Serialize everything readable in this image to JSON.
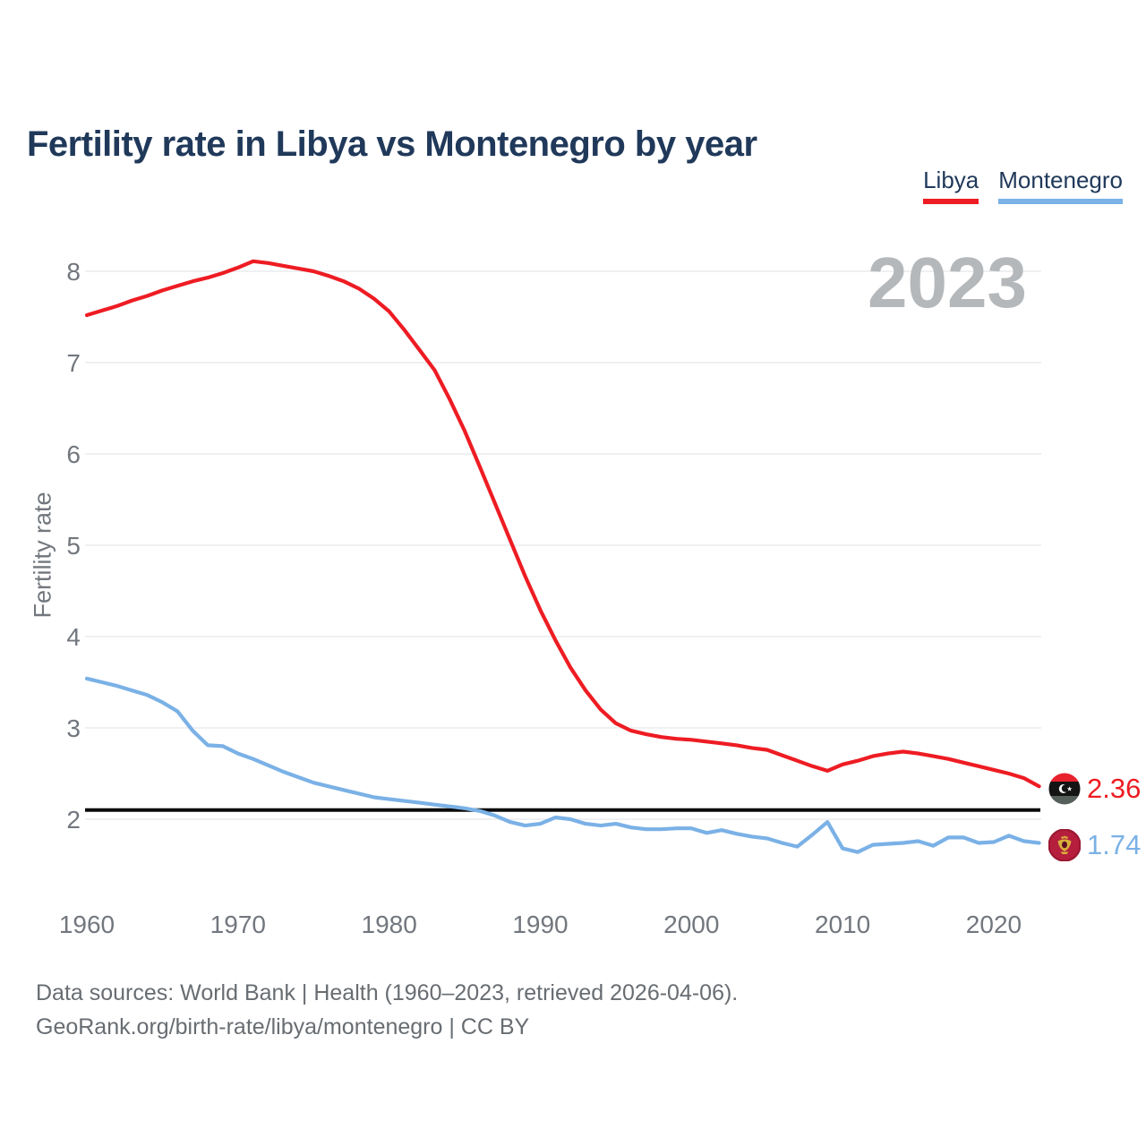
{
  "page": {
    "title": "Fertility rate in Libya vs Montenegro by year"
  },
  "legend": {
    "items": [
      "Libya",
      "Montenegro"
    ]
  },
  "footer": {
    "line1": "Data sources: World Bank | Health (1960–2023, retrieved 2026-04-06).",
    "line2": "GeoRank.org/birth-rate/libya/montenegro | CC BY"
  },
  "chart_data": {
    "type": "line",
    "title": "Fertility rate in Libya vs Montenegro by year",
    "xlabel": "",
    "ylabel": "Fertility rate",
    "watermark": "2023",
    "grid": "horizontal",
    "legend_position": "top-right",
    "x_ticks": [
      1960,
      1970,
      1980,
      1990,
      2000,
      2010,
      2020
    ],
    "y_ticks": [
      2,
      3,
      4,
      5,
      6,
      7,
      8
    ],
    "xlim": [
      1960,
      2023
    ],
    "ylim": [
      1.55,
      8.35
    ],
    "replacement_line": 2.1,
    "x_start": 1960,
    "x_step": 1,
    "series": [
      {
        "name": "Libya",
        "color": "#ee1c23",
        "end_label": "2.36",
        "flag": "libya-flag",
        "values": [
          7.52,
          7.57,
          7.62,
          7.68,
          7.73,
          7.79,
          7.84,
          7.89,
          7.93,
          7.98,
          8.04,
          8.11,
          8.09,
          8.06,
          8.03,
          8.0,
          7.95,
          7.89,
          7.81,
          7.7,
          7.56,
          7.36,
          7.14,
          6.92,
          6.6,
          6.25,
          5.86,
          5.46,
          5.06,
          4.66,
          4.29,
          3.96,
          3.66,
          3.41,
          3.2,
          3.05,
          2.97,
          2.93,
          2.9,
          2.88,
          2.87,
          2.85,
          2.83,
          2.81,
          2.78,
          2.76,
          2.7,
          2.64,
          2.58,
          2.53,
          2.6,
          2.64,
          2.69,
          2.72,
          2.74,
          2.72,
          2.69,
          2.66,
          2.62,
          2.58,
          2.54,
          2.5,
          2.45,
          2.36
        ]
      },
      {
        "name": "Montenegro",
        "color": "#7ab1e6",
        "end_label": "1.74",
        "flag": "montenegro-flag",
        "values": [
          3.54,
          3.5,
          3.46,
          3.41,
          3.36,
          3.28,
          3.18,
          2.97,
          2.81,
          2.8,
          2.72,
          2.66,
          2.59,
          2.52,
          2.46,
          2.4,
          2.36,
          2.32,
          2.28,
          2.24,
          2.22,
          2.2,
          2.18,
          2.16,
          2.14,
          2.12,
          2.09,
          2.04,
          1.97,
          1.93,
          1.95,
          2.02,
          2.0,
          1.95,
          1.93,
          1.95,
          1.91,
          1.89,
          1.89,
          1.9,
          1.9,
          1.85,
          1.88,
          1.84,
          1.81,
          1.79,
          1.74,
          1.7,
          1.83,
          1.97,
          1.68,
          1.64,
          1.72,
          1.73,
          1.74,
          1.76,
          1.71,
          1.8,
          1.8,
          1.74,
          1.75,
          1.82,
          1.76,
          1.74
        ]
      }
    ]
  }
}
